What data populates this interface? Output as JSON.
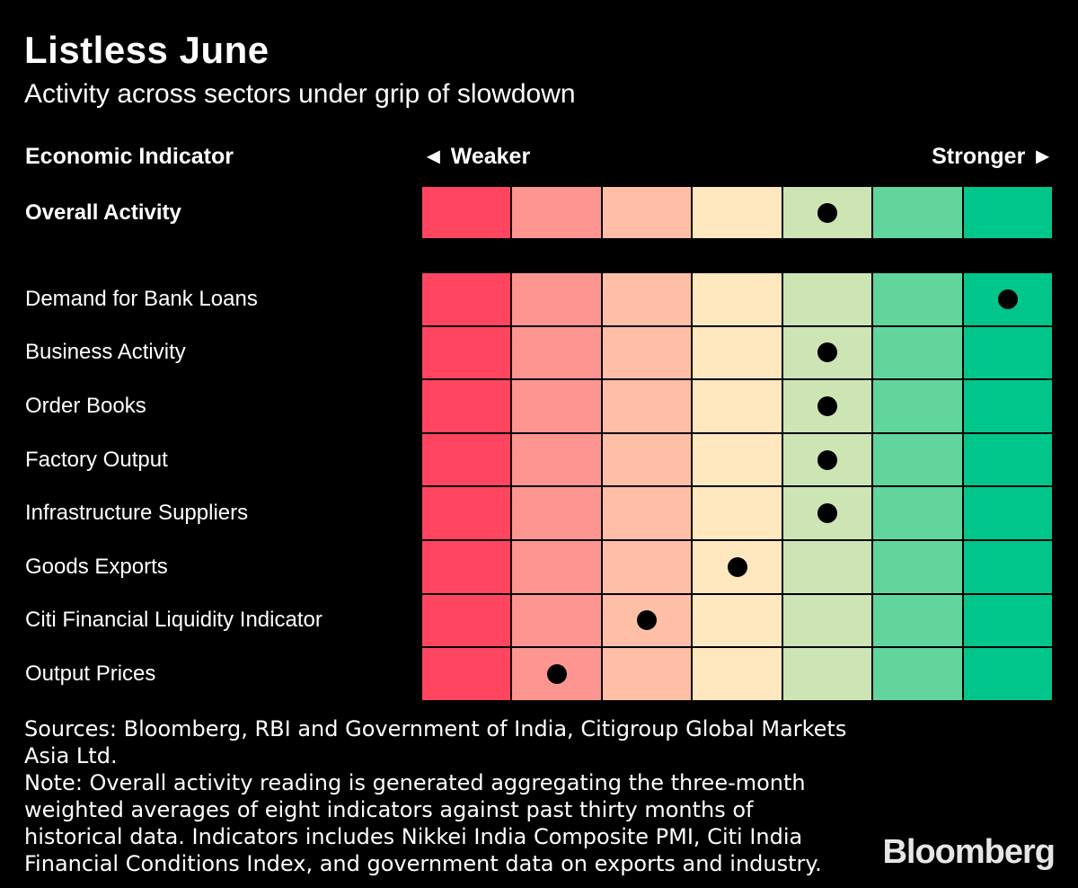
{
  "title": "Listless June",
  "subtitle": "Activity across sectors under grip of slowdown",
  "headers": {
    "indicator": "Economic Indicator",
    "weaker": "◄ Weaker",
    "stronger": "Stronger ►"
  },
  "scale_colors": [
    "#ff4560",
    "#ff9591",
    "#ffbfa6",
    "#ffe7c0",
    "#cde4b4",
    "#62d59c",
    "#00c68b"
  ],
  "chart_data": {
    "type": "table",
    "title": "Listless June",
    "subtitle": "Activity across sectors under grip of slowdown",
    "scale": {
      "levels": 7,
      "min_label": "Weaker",
      "max_label": "Stronger",
      "min": 1,
      "max": 7
    },
    "overall": {
      "label": "Overall Activity",
      "level": 5
    },
    "rows": [
      {
        "label": "Demand for Bank Loans",
        "level": 7
      },
      {
        "label": "Business Activity",
        "level": 5
      },
      {
        "label": "Order Books",
        "level": 5
      },
      {
        "label": "Factory Output",
        "level": 5
      },
      {
        "label": "Infrastructure Suppliers",
        "level": 5
      },
      {
        "label": "Goods Exports",
        "level": 4
      },
      {
        "label": "Citi Financial Liquidity Indicator",
        "level": 3
      },
      {
        "label": "Output Prices",
        "level": 2
      }
    ]
  },
  "footer": {
    "sources": "Sources: Bloomberg, RBI and Government of India, Citigroup Global Markets\nAsia Ltd.",
    "note": "Note: Overall activity reading is generated aggregating the three-month\nweighted averages of eight indicators against past thirty months of\nhistorical data. Indicators includes Nikkei India Composite PMI, Citi India\nFinancial Conditions Index, and government data on exports and industry.",
    "logo": "Bloomberg"
  }
}
